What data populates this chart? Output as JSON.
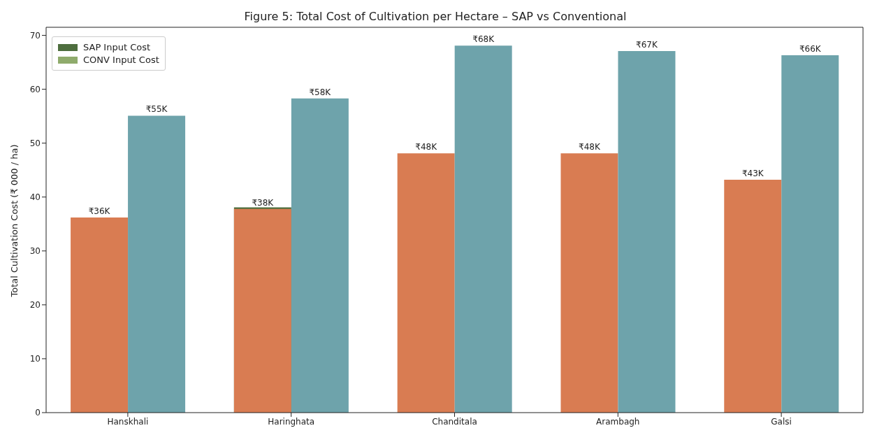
{
  "chart_data": {
    "type": "bar",
    "title": "Figure 5: Total Cost of Cultivation per Hectare – SAP vs Conventional",
    "ylabel": "Total Cultivation Cost (₹ 000 / ha)",
    "categories": [
      "Hanskhali",
      "Haringhata",
      "Chanditala",
      "Arambagh",
      "Galsi"
    ],
    "series": [
      {
        "name": "SAP Input Cost",
        "color": "#4e6e3e",
        "values": [
          null,
          38.1,
          null,
          null,
          null
        ]
      },
      {
        "name": "CONV Input Cost",
        "color": "#8fab6c",
        "values": [
          null,
          null,
          null,
          null,
          null
        ]
      },
      {
        "color": "#d97c52",
        "values": [
          36.2,
          37.8,
          48.1,
          48.1,
          43.2
        ],
        "value_labels": [
          "₹36K",
          "₹38K",
          "₹48K",
          "₹48K",
          "₹43K"
        ]
      },
      {
        "color": "#6ea3ab",
        "values": [
          55.1,
          58.3,
          68.1,
          67.1,
          66.3
        ],
        "value_labels": [
          "₹55K",
          "₹58K",
          "₹68K",
          "₹67K",
          "₹66K"
        ]
      }
    ],
    "ylim": [
      0,
      71.5
    ],
    "yticks": [
      0,
      10,
      20,
      30,
      40,
      50,
      60,
      70
    ],
    "legend": "top left"
  }
}
